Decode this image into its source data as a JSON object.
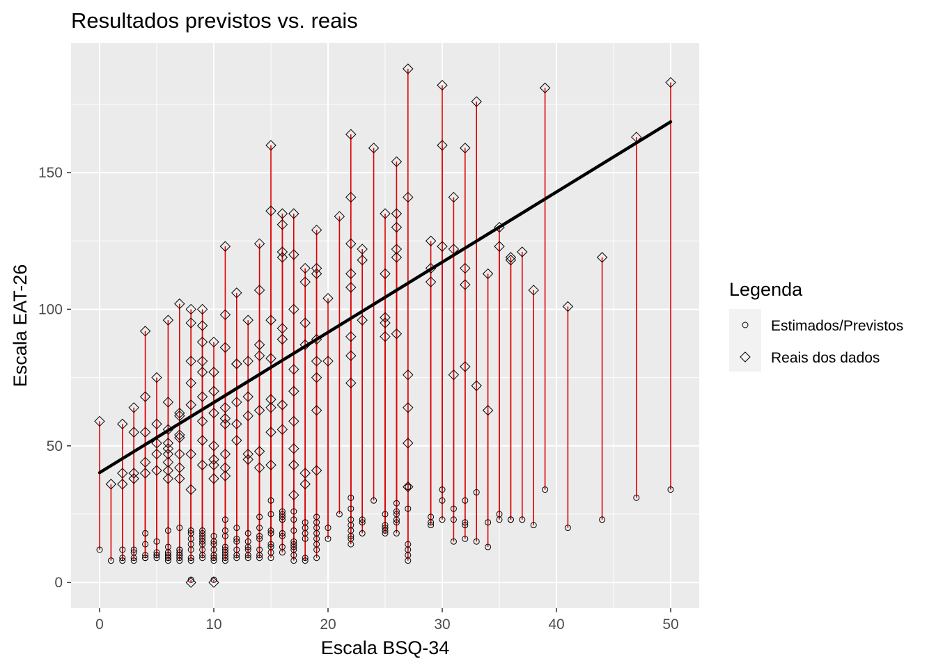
{
  "chart_data": {
    "type": "scatter",
    "title": "Resultados previstos vs. reais",
    "xlabel": "Escala BSQ-34",
    "ylabel": "Escala EAT-26",
    "xlim": [
      -2.5,
      52.5
    ],
    "ylim": [
      -9.4,
      197.4
    ],
    "x_ticks": [
      0,
      10,
      20,
      30,
      40,
      50
    ],
    "y_ticks": [
      0,
      50,
      100,
      150
    ],
    "grid": true,
    "legend_position": "right",
    "legend": {
      "title": "Legenda",
      "entries": [
        {
          "label": "Estimados/Previstos",
          "shape": "circle"
        },
        {
          "label": "Reais dos dados",
          "shape": "diamond"
        }
      ]
    },
    "regression_line": {
      "color": "#000000",
      "x": [
        0,
        50
      ],
      "y": [
        40.2,
        168.6
      ]
    },
    "segment_color": "#e00000",
    "pairs": [
      [
        0,
        12,
        59
      ],
      [
        1,
        8,
        36
      ],
      [
        2,
        8,
        36
      ],
      [
        2,
        9,
        40
      ],
      [
        2,
        12,
        58
      ],
      [
        3,
        8,
        38
      ],
      [
        3,
        9,
        40
      ],
      [
        3,
        11,
        55
      ],
      [
        3,
        12,
        64
      ],
      [
        4,
        9,
        40
      ],
      [
        4,
        9,
        44
      ],
      [
        4,
        10,
        55
      ],
      [
        4,
        14,
        68
      ],
      [
        4,
        18,
        92
      ],
      [
        5,
        9,
        41
      ],
      [
        5,
        10,
        47
      ],
      [
        5,
        10,
        51
      ],
      [
        5,
        11,
        58
      ],
      [
        5,
        15,
        75
      ],
      [
        6,
        8,
        38
      ],
      [
        6,
        9,
        41
      ],
      [
        6,
        9,
        44
      ],
      [
        6,
        10,
        47
      ],
      [
        6,
        10,
        49
      ],
      [
        6,
        11,
        51
      ],
      [
        6,
        11,
        56
      ],
      [
        6,
        13,
        66
      ],
      [
        6,
        19,
        96
      ],
      [
        7,
        8,
        38
      ],
      [
        7,
        9,
        42
      ],
      [
        7,
        10,
        47
      ],
      [
        7,
        10,
        53
      ],
      [
        7,
        11,
        54
      ],
      [
        7,
        12,
        61
      ],
      [
        7,
        12,
        62
      ],
      [
        7,
        20,
        102
      ],
      [
        8,
        1,
        0
      ],
      [
        8,
        8,
        34
      ],
      [
        8,
        9,
        47
      ],
      [
        8,
        12,
        65
      ],
      [
        8,
        14,
        73
      ],
      [
        8,
        16,
        81
      ],
      [
        8,
        18,
        95
      ],
      [
        8,
        19,
        100
      ],
      [
        9,
        9,
        43
      ],
      [
        9,
        10,
        52
      ],
      [
        9,
        12,
        59
      ],
      [
        9,
        14,
        68
      ],
      [
        9,
        15,
        77
      ],
      [
        9,
        16,
        81
      ],
      [
        9,
        17,
        88
      ],
      [
        9,
        18,
        94
      ],
      [
        9,
        19,
        100
      ],
      [
        10,
        1,
        0
      ],
      [
        10,
        8,
        38
      ],
      [
        10,
        9,
        43
      ],
      [
        10,
        9,
        45
      ],
      [
        10,
        10,
        50
      ],
      [
        10,
        12,
        62
      ],
      [
        10,
        14,
        70
      ],
      [
        10,
        15,
        77
      ],
      [
        10,
        17,
        88
      ],
      [
        11,
        8,
        39
      ],
      [
        11,
        9,
        42
      ],
      [
        11,
        10,
        47
      ],
      [
        11,
        11,
        58
      ],
      [
        11,
        12,
        60
      ],
      [
        11,
        13,
        64
      ],
      [
        11,
        17,
        86
      ],
      [
        11,
        19,
        98
      ],
      [
        11,
        23,
        123
      ],
      [
        12,
        9,
        52
      ],
      [
        12,
        10,
        58
      ],
      [
        12,
        12,
        66
      ],
      [
        12,
        15,
        80
      ],
      [
        12,
        16,
        80
      ],
      [
        12,
        20,
        106
      ],
      [
        13,
        9,
        45
      ],
      [
        13,
        10,
        47
      ],
      [
        13,
        12,
        61
      ],
      [
        13,
        13,
        68
      ],
      [
        13,
        15,
        81
      ],
      [
        13,
        18,
        96
      ],
      [
        14,
        9,
        42
      ],
      [
        14,
        10,
        48
      ],
      [
        14,
        12,
        63
      ],
      [
        14,
        16,
        83
      ],
      [
        14,
        17,
        87
      ],
      [
        14,
        20,
        107
      ],
      [
        14,
        24,
        124
      ],
      [
        15,
        9,
        43
      ],
      [
        15,
        11,
        55
      ],
      [
        15,
        13,
        64
      ],
      [
        15,
        14,
        67
      ],
      [
        15,
        18,
        82
      ],
      [
        15,
        19,
        96
      ],
      [
        15,
        25,
        136
      ],
      [
        15,
        30,
        160
      ],
      [
        16,
        11,
        56
      ],
      [
        16,
        13,
        65
      ],
      [
        16,
        17,
        89
      ],
      [
        16,
        18,
        93
      ],
      [
        16,
        23,
        119
      ],
      [
        16,
        24,
        121
      ],
      [
        16,
        25,
        131
      ],
      [
        16,
        26,
        135
      ],
      [
        17,
        8,
        32
      ],
      [
        17,
        10,
        43
      ],
      [
        17,
        12,
        49
      ],
      [
        17,
        13,
        59
      ],
      [
        17,
        14,
        70
      ],
      [
        17,
        15,
        78
      ],
      [
        17,
        19,
        100
      ],
      [
        17,
        23,
        120
      ],
      [
        17,
        26,
        135
      ],
      [
        18,
        8,
        36
      ],
      [
        18,
        9,
        40
      ],
      [
        18,
        16,
        87
      ],
      [
        18,
        18,
        95
      ],
      [
        18,
        20,
        110
      ],
      [
        18,
        22,
        115
      ],
      [
        19,
        9,
        41
      ],
      [
        19,
        12,
        63
      ],
      [
        19,
        14,
        75
      ],
      [
        19,
        16,
        81
      ],
      [
        19,
        18,
        89
      ],
      [
        19,
        20,
        113
      ],
      [
        19,
        22,
        115
      ],
      [
        19,
        24,
        129
      ],
      [
        20,
        16,
        81
      ],
      [
        20,
        20,
        104
      ],
      [
        21,
        25,
        134
      ],
      [
        22,
        14,
        73
      ],
      [
        22,
        16,
        83
      ],
      [
        22,
        17,
        90
      ],
      [
        22,
        19,
        108
      ],
      [
        22,
        21,
        113
      ],
      [
        22,
        23,
        124
      ],
      [
        22,
        27,
        141
      ],
      [
        22,
        31,
        164
      ],
      [
        23,
        18,
        96
      ],
      [
        23,
        22,
        118
      ],
      [
        23,
        23,
        122
      ],
      [
        24,
        30,
        159
      ],
      [
        25,
        18,
        90
      ],
      [
        25,
        19,
        95
      ],
      [
        25,
        20,
        97
      ],
      [
        25,
        21,
        113
      ],
      [
        25,
        25,
        135
      ],
      [
        26,
        18,
        91
      ],
      [
        26,
        22,
        119
      ],
      [
        26,
        23,
        122
      ],
      [
        26,
        25,
        130
      ],
      [
        26,
        26,
        135
      ],
      [
        26,
        29,
        154
      ],
      [
        27,
        8,
        35
      ],
      [
        27,
        10,
        51
      ],
      [
        27,
        12,
        64
      ],
      [
        27,
        14,
        76
      ],
      [
        27,
        27,
        141
      ],
      [
        27,
        35,
        188
      ],
      [
        29,
        21,
        110
      ],
      [
        29,
        22,
        115
      ],
      [
        29,
        24,
        125
      ],
      [
        30,
        23,
        123
      ],
      [
        30,
        30,
        160
      ],
      [
        30,
        34,
        182
      ],
      [
        31,
        15,
        76
      ],
      [
        31,
        23,
        122
      ],
      [
        31,
        27,
        141
      ],
      [
        32,
        16,
        79
      ],
      [
        32,
        21,
        109
      ],
      [
        32,
        22,
        115
      ],
      [
        32,
        30,
        159
      ],
      [
        33,
        15,
        72
      ],
      [
        33,
        33,
        176
      ],
      [
        34,
        13,
        63
      ],
      [
        34,
        22,
        113
      ],
      [
        35,
        23,
        123
      ],
      [
        35,
        25,
        130
      ],
      [
        36,
        23,
        118
      ],
      [
        36,
        23,
        119
      ],
      [
        37,
        23,
        121
      ],
      [
        38,
        21,
        107
      ],
      [
        39,
        34,
        181
      ],
      [
        41,
        20,
        101
      ],
      [
        44,
        23,
        119
      ],
      [
        47,
        31,
        163
      ],
      [
        50,
        34,
        183
      ]
    ]
  }
}
